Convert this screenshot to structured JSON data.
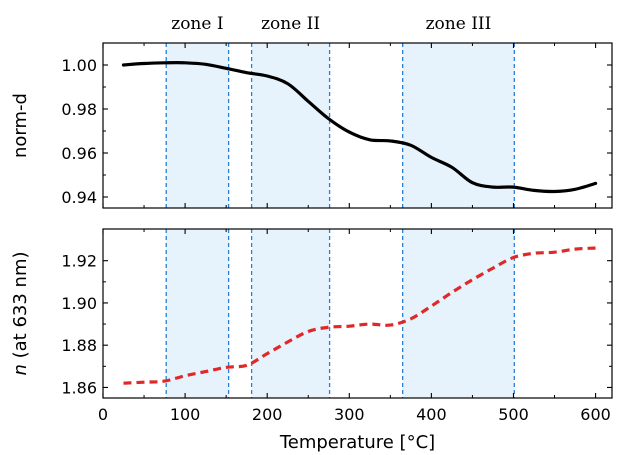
{
  "chart_data": {
    "type": "line",
    "xlabel": "Temperature [°C]",
    "xlim": [
      0,
      620
    ],
    "xticks": [
      0,
      100,
      200,
      300,
      400,
      500,
      600
    ],
    "zones": [
      {
        "label": "zone I",
        "x0": 77,
        "x1": 153
      },
      {
        "label": "zone II",
        "x0": 181,
        "x1": 276
      },
      {
        "label": "zone III",
        "x0": 365,
        "x1": 501
      }
    ],
    "colors": {
      "zone_fill": "#e6f3fd",
      "zone_line": "#2a7fd4",
      "top_series": "#000000",
      "bottom_series": "#e02828"
    },
    "panels": [
      {
        "name": "top",
        "ylabel": "norm-d",
        "ylim": [
          0.935,
          1.01
        ],
        "yticks": [
          0.94,
          0.96,
          0.98,
          1.0
        ],
        "ytick_labels": [
          "0.94",
          "0.96",
          "0.98",
          "1.00"
        ],
        "series": [
          {
            "style": "solid",
            "color": "#000000",
            "x": [
              25,
              50,
              75,
              100,
              125,
              150,
              175,
              200,
              225,
              250,
              275,
              300,
              325,
              350,
              375,
              400,
              425,
              450,
              475,
              500,
              525,
              550,
              575,
              600
            ],
            "y": [
              1.0,
              1.0007,
              1.001,
              1.001,
              1.0003,
              0.9985,
              0.9965,
              0.995,
              0.9915,
              0.9835,
              0.9755,
              0.9695,
              0.966,
              0.9655,
              0.9635,
              0.958,
              0.9535,
              0.9465,
              0.9445,
              0.9445,
              0.943,
              0.9425,
              0.9435,
              0.9462
            ]
          }
        ]
      },
      {
        "name": "bottom",
        "ylabel": "n (at 633 nm)",
        "ylabel_italic": "n",
        "ylabel_rest": " (at 633 nm)",
        "ylim": [
          1.855,
          1.935
        ],
        "yticks": [
          1.86,
          1.88,
          1.9,
          1.92
        ],
        "ytick_labels": [
          "1.86",
          "1.88",
          "1.90",
          "1.92"
        ],
        "series": [
          {
            "style": "dashed",
            "color": "#e02828",
            "x": [
              25,
              50,
              75,
              100,
              125,
              150,
              175,
              200,
              225,
              250,
              275,
              300,
              325,
              350,
              375,
              400,
              425,
              450,
              475,
              500,
              525,
              550,
              575,
              600
            ],
            "y": [
              1.862,
              1.8625,
              1.863,
              1.8655,
              1.8675,
              1.8695,
              1.8705,
              1.876,
              1.8815,
              1.8865,
              1.8885,
              1.889,
              1.89,
              1.8895,
              1.8925,
              1.8985,
              1.905,
              1.911,
              1.9165,
              1.9215,
              1.9235,
              1.924,
              1.9255,
              1.926
            ]
          }
        ]
      }
    ]
  }
}
